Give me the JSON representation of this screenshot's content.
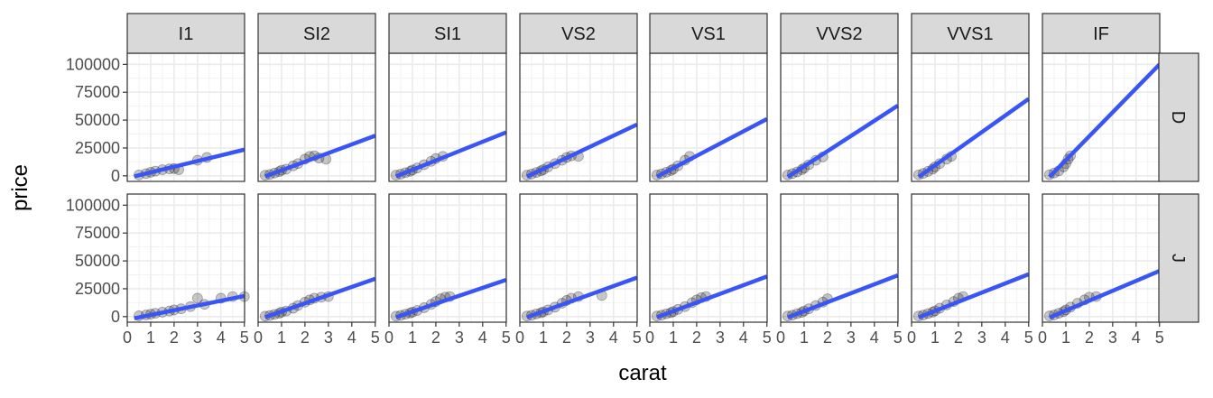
{
  "chart_data": {
    "type": "scatter",
    "facet_layout": "grid",
    "xlabel": "carat",
    "ylabel": "price",
    "xlim": [
      0,
      5.01
    ],
    "ylim": [
      -5000,
      110000
    ],
    "x_ticks": [
      0,
      1,
      2,
      3,
      4,
      5
    ],
    "y_ticks": [
      0,
      25000,
      50000,
      75000,
      100000
    ],
    "x_tick_labels": [
      "0",
      "1",
      "2",
      "3",
      "4",
      "5"
    ],
    "y_tick_labels": [
      "0",
      "25000",
      "50000",
      "75000",
      "100000"
    ],
    "grid": true,
    "clarity_levels": [
      "I1",
      "SI2",
      "SI1",
      "VS2",
      "VS1",
      "VVS2",
      "VVS1",
      "IF"
    ],
    "color_levels": [
      "D",
      "J"
    ],
    "colors": {
      "points": "#000000",
      "fit_line": "#3a55f5",
      "strip_fill": "#d9d9d9",
      "panel_border": "#333333",
      "grid": "#ebebeb"
    },
    "panels": [
      {
        "color": "D",
        "clarity": "I1",
        "fit": [
          [
            0.3,
            -500
          ],
          [
            5,
            23500
          ]
        ],
        "points": [
          [
            0.5,
            800
          ],
          [
            0.8,
            2000
          ],
          [
            1.0,
            3200
          ],
          [
            1.2,
            4200
          ],
          [
            1.5,
            5500
          ],
          [
            1.8,
            6200
          ],
          [
            2.0,
            6500
          ],
          [
            2.2,
            5500
          ],
          [
            3.0,
            14000
          ],
          [
            3.4,
            16500
          ]
        ]
      },
      {
        "color": "D",
        "clarity": "SI2",
        "fit": [
          [
            0.3,
            -500
          ],
          [
            5,
            36000
          ]
        ],
        "points": [
          [
            0.3,
            500
          ],
          [
            0.5,
            1200
          ],
          [
            0.7,
            2500
          ],
          [
            0.9,
            3800
          ],
          [
            1.0,
            5000
          ],
          [
            1.2,
            6000
          ],
          [
            1.5,
            9000
          ],
          [
            1.7,
            11000
          ],
          [
            2.0,
            15000
          ],
          [
            2.2,
            17500
          ],
          [
            2.4,
            18000
          ],
          [
            2.6,
            16000
          ],
          [
            2.9,
            15000
          ]
        ]
      },
      {
        "color": "D",
        "clarity": "SI1",
        "fit": [
          [
            0.3,
            -500
          ],
          [
            5,
            39000
          ]
        ],
        "points": [
          [
            0.3,
            600
          ],
          [
            0.5,
            1500
          ],
          [
            0.7,
            2800
          ],
          [
            0.9,
            4000
          ],
          [
            1.0,
            5200
          ],
          [
            1.2,
            7000
          ],
          [
            1.5,
            10000
          ],
          [
            1.8,
            13000
          ],
          [
            2.0,
            15500
          ],
          [
            2.3,
            17500
          ]
        ]
      },
      {
        "color": "D",
        "clarity": "VS2",
        "fit": [
          [
            0.3,
            -700
          ],
          [
            5,
            46000
          ]
        ],
        "points": [
          [
            0.3,
            600
          ],
          [
            0.5,
            1600
          ],
          [
            0.7,
            3000
          ],
          [
            0.9,
            4500
          ],
          [
            1.0,
            5500
          ],
          [
            1.2,
            8000
          ],
          [
            1.5,
            11000
          ],
          [
            1.8,
            14000
          ],
          [
            2.0,
            16500
          ],
          [
            2.2,
            18000
          ],
          [
            2.5,
            17500
          ]
        ]
      },
      {
        "color": "D",
        "clarity": "VS1",
        "fit": [
          [
            0.3,
            -800
          ],
          [
            5,
            51000
          ]
        ],
        "points": [
          [
            0.3,
            700
          ],
          [
            0.5,
            1800
          ],
          [
            0.7,
            3200
          ],
          [
            0.9,
            4800
          ],
          [
            1.0,
            6000
          ],
          [
            1.2,
            9000
          ],
          [
            1.5,
            14000
          ],
          [
            1.7,
            17500
          ]
        ]
      },
      {
        "color": "D",
        "clarity": "VVS2",
        "fit": [
          [
            0.3,
            -1000
          ],
          [
            5,
            63000
          ]
        ],
        "points": [
          [
            0.3,
            800
          ],
          [
            0.5,
            2000
          ],
          [
            0.7,
            3500
          ],
          [
            0.9,
            5500
          ],
          [
            1.0,
            7000
          ],
          [
            1.2,
            10000
          ],
          [
            1.5,
            14000
          ],
          [
            1.8,
            17000
          ]
        ]
      },
      {
        "color": "D",
        "clarity": "VVS1",
        "fit": [
          [
            0.3,
            -1000
          ],
          [
            5,
            69000
          ]
        ],
        "points": [
          [
            0.3,
            900
          ],
          [
            0.5,
            2200
          ],
          [
            0.7,
            4000
          ],
          [
            0.9,
            6000
          ],
          [
            1.0,
            8000
          ],
          [
            1.2,
            11000
          ],
          [
            1.5,
            15000
          ],
          [
            1.7,
            17500
          ]
        ]
      },
      {
        "color": "D",
        "clarity": "IF",
        "fit": [
          [
            0.3,
            -1000
          ],
          [
            5,
            100000
          ]
        ],
        "points": [
          [
            0.3,
            1000
          ],
          [
            0.5,
            2500
          ],
          [
            0.7,
            4500
          ],
          [
            0.9,
            8000
          ],
          [
            1.0,
            11000
          ],
          [
            1.1,
            15000
          ],
          [
            1.2,
            18000
          ]
        ]
      },
      {
        "color": "J",
        "clarity": "I1",
        "fit": [
          [
            0.3,
            -1500
          ],
          [
            5,
            18500
          ]
        ],
        "points": [
          [
            0.5,
            700
          ],
          [
            0.8,
            1500
          ],
          [
            1.0,
            2200
          ],
          [
            1.2,
            3000
          ],
          [
            1.5,
            4000
          ],
          [
            1.8,
            5000
          ],
          [
            2.0,
            6000
          ],
          [
            2.3,
            7000
          ],
          [
            2.7,
            9000
          ],
          [
            3.0,
            16500
          ],
          [
            3.3,
            11000
          ],
          [
            4.0,
            16500
          ],
          [
            4.5,
            18000
          ],
          [
            5.0,
            18000
          ]
        ]
      },
      {
        "color": "J",
        "clarity": "SI2",
        "fit": [
          [
            0.3,
            -500
          ],
          [
            5,
            34000
          ]
        ],
        "points": [
          [
            0.3,
            400
          ],
          [
            0.5,
            1000
          ],
          [
            0.7,
            2000
          ],
          [
            0.9,
            3000
          ],
          [
            1.0,
            4000
          ],
          [
            1.2,
            5000
          ],
          [
            1.5,
            7500
          ],
          [
            1.7,
            10000
          ],
          [
            2.0,
            13000
          ],
          [
            2.2,
            15000
          ],
          [
            2.4,
            16500
          ],
          [
            2.7,
            17500
          ],
          [
            3.0,
            18000
          ]
        ]
      },
      {
        "color": "J",
        "clarity": "SI1",
        "fit": [
          [
            0.3,
            -500
          ],
          [
            5,
            33000
          ]
        ],
        "points": [
          [
            0.3,
            400
          ],
          [
            0.5,
            1100
          ],
          [
            0.7,
            2200
          ],
          [
            0.9,
            3200
          ],
          [
            1.0,
            4000
          ],
          [
            1.2,
            5500
          ],
          [
            1.5,
            8000
          ],
          [
            1.8,
            11000
          ],
          [
            2.0,
            13500
          ],
          [
            2.2,
            16000
          ],
          [
            2.4,
            17500
          ],
          [
            2.6,
            18000
          ]
        ]
      },
      {
        "color": "J",
        "clarity": "VS2",
        "fit": [
          [
            0.3,
            -600
          ],
          [
            5,
            35000
          ]
        ],
        "points": [
          [
            0.3,
            500
          ],
          [
            0.5,
            1200
          ],
          [
            0.7,
            2400
          ],
          [
            0.9,
            3400
          ],
          [
            1.0,
            4200
          ],
          [
            1.2,
            6000
          ],
          [
            1.5,
            8500
          ],
          [
            1.8,
            12000
          ],
          [
            2.0,
            14500
          ],
          [
            2.2,
            16500
          ],
          [
            2.5,
            18000
          ],
          [
            3.5,
            19000
          ]
        ]
      },
      {
        "color": "J",
        "clarity": "VS1",
        "fit": [
          [
            0.3,
            -600
          ],
          [
            5,
            36000
          ]
        ],
        "points": [
          [
            0.3,
            500
          ],
          [
            0.5,
            1300
          ],
          [
            0.7,
            2500
          ],
          [
            0.9,
            3500
          ],
          [
            1.0,
            4500
          ],
          [
            1.2,
            6500
          ],
          [
            1.5,
            9000
          ],
          [
            1.8,
            12500
          ],
          [
            2.0,
            15000
          ],
          [
            2.2,
            17000
          ],
          [
            2.4,
            18000
          ]
        ]
      },
      {
        "color": "J",
        "clarity": "VVS2",
        "fit": [
          [
            0.3,
            -700
          ],
          [
            5,
            37000
          ]
        ],
        "points": [
          [
            0.3,
            500
          ],
          [
            0.5,
            1300
          ],
          [
            0.7,
            2600
          ],
          [
            0.9,
            3800
          ],
          [
            1.0,
            5000
          ],
          [
            1.2,
            7000
          ],
          [
            1.5,
            10000
          ],
          [
            1.8,
            13000
          ],
          [
            2.0,
            16000
          ]
        ]
      },
      {
        "color": "J",
        "clarity": "VVS1",
        "fit": [
          [
            0.3,
            -700
          ],
          [
            5,
            38000
          ]
        ],
        "points": [
          [
            0.3,
            500
          ],
          [
            0.5,
            1400
          ],
          [
            0.7,
            2700
          ],
          [
            0.9,
            4000
          ],
          [
            1.0,
            5200
          ],
          [
            1.2,
            7500
          ],
          [
            1.5,
            10500
          ],
          [
            1.8,
            13500
          ],
          [
            2.0,
            16500
          ],
          [
            2.2,
            18000
          ]
        ]
      },
      {
        "color": "J",
        "clarity": "IF",
        "fit": [
          [
            0.3,
            -800
          ],
          [
            5,
            41000
          ]
        ],
        "points": [
          [
            0.3,
            600
          ],
          [
            0.5,
            1500
          ],
          [
            0.7,
            3000
          ],
          [
            0.9,
            4500
          ],
          [
            1.0,
            6000
          ],
          [
            1.2,
            8500
          ],
          [
            1.5,
            12000
          ],
          [
            1.8,
            15000
          ],
          [
            2.0,
            17500
          ],
          [
            2.3,
            18000
          ]
        ]
      }
    ]
  }
}
